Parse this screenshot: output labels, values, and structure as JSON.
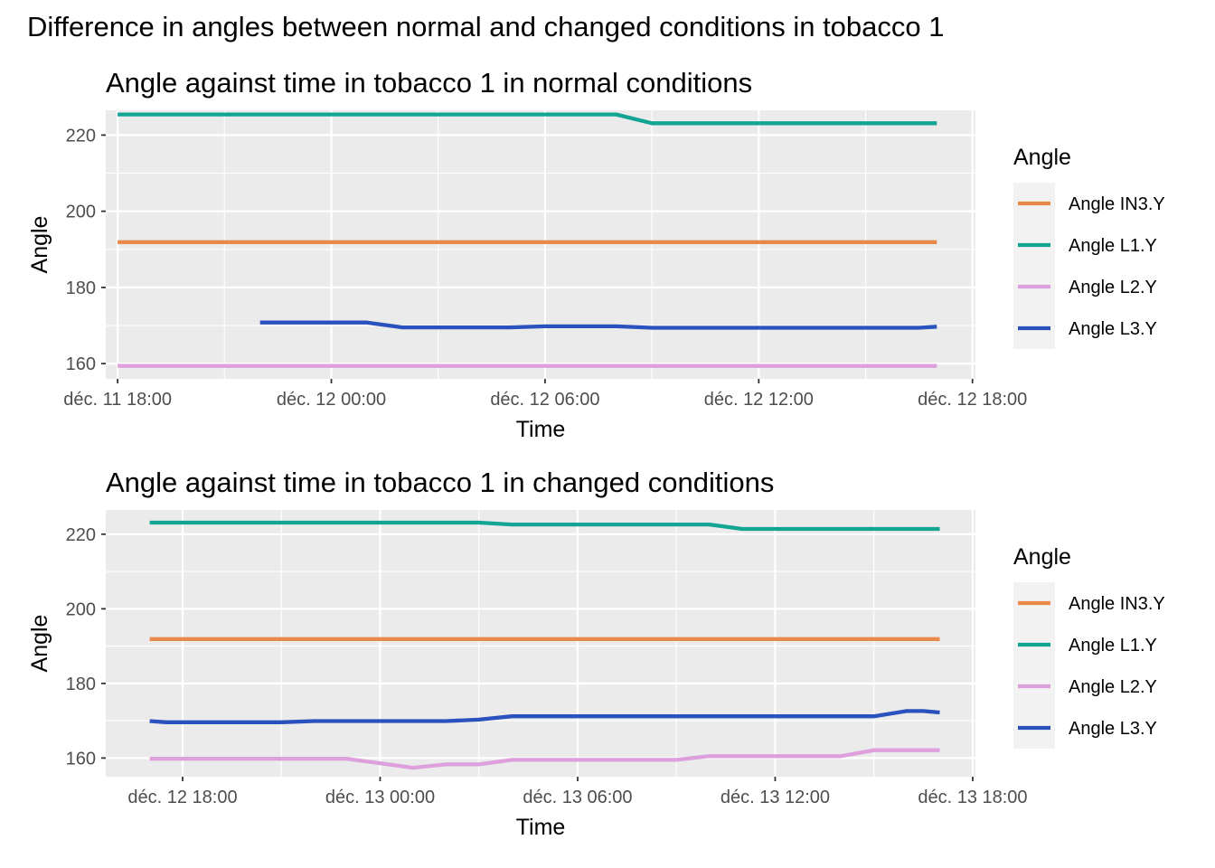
{
  "figure": {
    "title": "Difference in angles between normal and changed conditions in tobacco  1"
  },
  "chart_data": [
    {
      "type": "line",
      "title": "Angle against time in tobacco  1 in normal conditions",
      "xlabel": "Time",
      "ylabel": "Angle",
      "legend_title": "Angle",
      "legend_position": "right",
      "grid": true,
      "x_unit": "datetime",
      "xlim": [
        "2023-12-11 17:40",
        "2023-12-12 18:05"
      ],
      "ylim": [
        156,
        226.5
      ],
      "x_ticks": [
        "2023-12-11 18:00",
        "2023-12-12 00:00",
        "2023-12-12 06:00",
        "2023-12-12 12:00",
        "2023-12-12 18:00"
      ],
      "x_tick_labels": [
        "déc. 11 18:00",
        "déc. 12 00:00",
        "déc. 12 06:00",
        "déc. 12 12:00",
        "déc. 12 18:00"
      ],
      "y_ticks": [
        160,
        180,
        200,
        220
      ],
      "y_tick_labels": [
        "160",
        "180",
        "200",
        "220"
      ],
      "series": [
        {
          "name": "Angle IN3.Y",
          "color": "#E8894A",
          "x": [
            "2023-12-11 18:00",
            "2023-12-12 17:00"
          ],
          "y": [
            191.9,
            191.9
          ]
        },
        {
          "name": "Angle L1.Y",
          "color": "#12A594",
          "x": [
            "2023-12-11 18:00",
            "2023-12-12 08:00",
            "2023-12-12 09:00",
            "2023-12-12 17:00"
          ],
          "y": [
            225.4,
            225.4,
            223.1,
            223.1
          ]
        },
        {
          "name": "Angle L2.Y",
          "color": "#DDA0DD",
          "x": [
            "2023-12-11 18:00",
            "2023-12-12 17:00"
          ],
          "y": [
            159.4,
            159.4
          ]
        },
        {
          "name": "Angle L3.Y",
          "color": "#2A52BE",
          "x": [
            "2023-12-11 22:00",
            "2023-12-12 01:00",
            "2023-12-12 02:00",
            "2023-12-12 05:00",
            "2023-12-12 06:00",
            "2023-12-12 08:00",
            "2023-12-12 09:00",
            "2023-12-12 16:30",
            "2023-12-12 17:00"
          ],
          "y": [
            170.8,
            170.8,
            169.5,
            169.5,
            169.8,
            169.8,
            169.4,
            169.4,
            169.7
          ]
        }
      ]
    },
    {
      "type": "line",
      "title": "Angle against time in tobacco  1 in changed conditions",
      "xlabel": "Time",
      "ylabel": "Angle",
      "legend_title": "Angle",
      "legend_position": "right",
      "grid": true,
      "x_unit": "datetime",
      "xlim": [
        "2023-12-12 15:40",
        "2023-12-13 18:05"
      ],
      "ylim": [
        155,
        226.5
      ],
      "x_ticks": [
        "2023-12-12 18:00",
        "2023-12-13 00:00",
        "2023-12-13 06:00",
        "2023-12-13 12:00",
        "2023-12-13 18:00"
      ],
      "x_tick_labels": [
        "déc. 12 18:00",
        "déc. 13 00:00",
        "déc. 13 06:00",
        "déc. 13 12:00",
        "déc. 13 18:00"
      ],
      "y_ticks": [
        160,
        180,
        200,
        220
      ],
      "y_tick_labels": [
        "160",
        "180",
        "200",
        "220"
      ],
      "series": [
        {
          "name": "Angle IN3.Y",
          "color": "#E8894A",
          "x": [
            "2023-12-12 17:00",
            "2023-12-13 17:00"
          ],
          "y": [
            191.9,
            191.9
          ]
        },
        {
          "name": "Angle L1.Y",
          "color": "#12A594",
          "x": [
            "2023-12-12 17:00",
            "2023-12-13 03:00",
            "2023-12-13 04:00",
            "2023-12-13 10:00",
            "2023-12-13 11:00",
            "2023-12-13 17:00"
          ],
          "y": [
            223.1,
            223.1,
            222.6,
            222.6,
            221.4,
            221.4
          ]
        },
        {
          "name": "Angle L2.Y",
          "color": "#DDA0DD",
          "x": [
            "2023-12-12 17:00",
            "2023-12-12 23:00",
            "2023-12-13 01:00",
            "2023-12-13 02:00",
            "2023-12-13 03:00",
            "2023-12-13 04:00",
            "2023-12-13 09:00",
            "2023-12-13 10:00",
            "2023-12-13 14:00",
            "2023-12-13 15:00",
            "2023-12-13 17:00"
          ],
          "y": [
            159.8,
            159.8,
            157.4,
            158.3,
            158.3,
            159.5,
            159.5,
            160.5,
            160.5,
            162.1,
            162.1
          ]
        },
        {
          "name": "Angle L3.Y",
          "color": "#2A52BE",
          "x": [
            "2023-12-12 17:00",
            "2023-12-12 17:30",
            "2023-12-12 21:00",
            "2023-12-12 22:00",
            "2023-12-13 02:00",
            "2023-12-13 03:00",
            "2023-12-13 04:00",
            "2023-12-13 15:00",
            "2023-12-13 16:00",
            "2023-12-13 16:30",
            "2023-12-13 17:00"
          ],
          "y": [
            169.9,
            169.6,
            169.6,
            169.9,
            169.9,
            170.3,
            171.2,
            171.2,
            172.6,
            172.6,
            172.2
          ]
        }
      ]
    }
  ]
}
